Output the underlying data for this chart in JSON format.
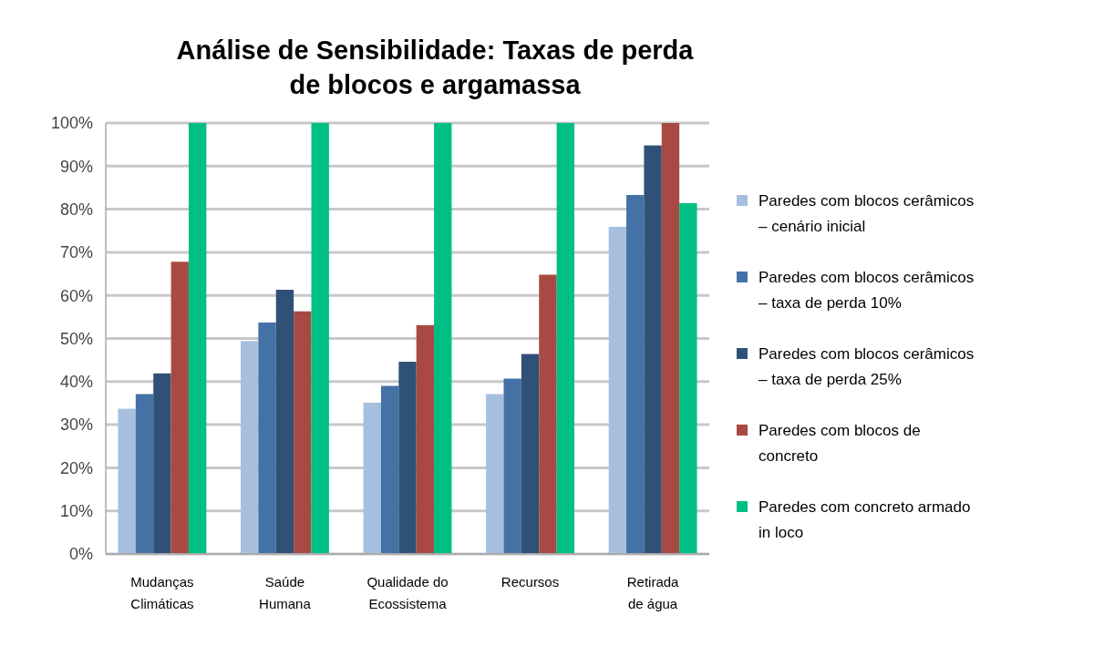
{
  "chart_data": {
    "type": "bar",
    "title": "Análise de Sensibilidade: Taxas de perda de blocos e argamassa",
    "categories": [
      "Mudanças\nClimáticas",
      "Saúde\nHumana",
      "Qualidade do\nEcossistema",
      "Recursos",
      "Retirada\nde água"
    ],
    "series": [
      {
        "name": "Paredes com blocos cerâmicos – cenário inicial",
        "color": "#a7bfdf",
        "values": [
          33.7,
          49.4,
          35.1,
          37.1,
          75.9
        ]
      },
      {
        "name": "Paredes com blocos cerâmicos – taxa de perda 10%",
        "color": "#4472a6",
        "values": [
          37.1,
          53.7,
          39,
          40.7,
          83.3
        ]
      },
      {
        "name": "Paredes com blocos cerâmicos – taxa de perda 25%",
        "color": "#2f5178",
        "values": [
          41.9,
          61.3,
          44.6,
          46.4,
          94.8
        ]
      },
      {
        "name": "Paredes com blocos de concreto",
        "color": "#a84a43",
        "values": [
          67.8,
          56.3,
          53.1,
          64.8,
          100
        ]
      },
      {
        "name": "Paredes com concreto armado in loco",
        "color": "#00bf84",
        "values": [
          100,
          100,
          100,
          100,
          81.4
        ]
      }
    ],
    "ylim": [
      0,
      100
    ],
    "yticks": [
      {
        "value": 0,
        "label": "0%"
      },
      {
        "value": 10,
        "label": "10%"
      },
      {
        "value": 20,
        "label": "20%"
      },
      {
        "value": 30,
        "label": "30%"
      },
      {
        "value": 40,
        "label": "40%"
      },
      {
        "value": 50,
        "label": "50%"
      },
      {
        "value": 60,
        "label": "60%"
      },
      {
        "value": 70,
        "label": "70%"
      },
      {
        "value": 80,
        "label": "80%"
      },
      {
        "value": 90,
        "label": "90%"
      },
      {
        "value": 100,
        "label": "100%"
      }
    ],
    "grid": "y",
    "legend": "right"
  }
}
